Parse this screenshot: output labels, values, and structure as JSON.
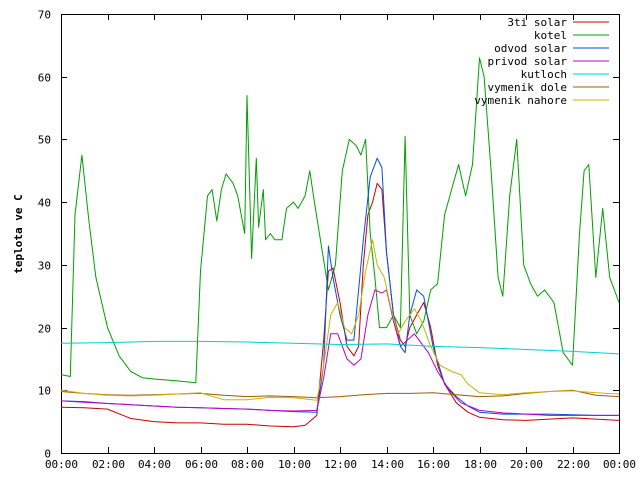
{
  "chart_data": {
    "type": "line",
    "title": "",
    "xlabel": "",
    "ylabel": "teplota ve C",
    "xlim": [
      0,
      24
    ],
    "ylim": [
      0,
      70
    ],
    "grid": false,
    "legend_position": "top-right",
    "x_ticks": [
      "00:00",
      "02:00",
      "04:00",
      "06:00",
      "08:00",
      "10:00",
      "12:00",
      "14:00",
      "16:00",
      "18:00",
      "20:00",
      "22:00",
      "00:00"
    ],
    "y_ticks": [
      "0",
      "10",
      "20",
      "30",
      "40",
      "50",
      "60",
      "70"
    ],
    "y_tick_values": [
      0,
      10,
      20,
      30,
      40,
      50,
      60,
      70
    ],
    "series": [
      {
        "name": "3ti solar",
        "color": "#cc0000",
        "points": [
          [
            0,
            7.3
          ],
          [
            1,
            7.2
          ],
          [
            2,
            7
          ],
          [
            3,
            5.5
          ],
          [
            4,
            5
          ],
          [
            5,
            4.8
          ],
          [
            6,
            4.8
          ],
          [
            7,
            4.6
          ],
          [
            8,
            4.6
          ],
          [
            9,
            4.3
          ],
          [
            10,
            4.2
          ],
          [
            10.5,
            4.4
          ],
          [
            11,
            6
          ],
          [
            11.3,
            18
          ],
          [
            11.5,
            29
          ],
          [
            11.7,
            29.5
          ],
          [
            12,
            24
          ],
          [
            12.3,
            17
          ],
          [
            12.6,
            15.5
          ],
          [
            12.8,
            17
          ],
          [
            13,
            30
          ],
          [
            13.2,
            38
          ],
          [
            13.4,
            40
          ],
          [
            13.6,
            43
          ],
          [
            13.8,
            42
          ],
          [
            14,
            32
          ],
          [
            14.3,
            22
          ],
          [
            14.6,
            18
          ],
          [
            14.8,
            17
          ],
          [
            15,
            20
          ],
          [
            15.3,
            22
          ],
          [
            15.6,
            24
          ],
          [
            15.9,
            20
          ],
          [
            16.2,
            14
          ],
          [
            16.5,
            11
          ],
          [
            17,
            8
          ],
          [
            17.5,
            6.5
          ],
          [
            18,
            5.7
          ],
          [
            19,
            5.3
          ],
          [
            20,
            5.2
          ],
          [
            21,
            5.4
          ],
          [
            22,
            5.6
          ],
          [
            23,
            5.4
          ],
          [
            24,
            5.2
          ]
        ]
      },
      {
        "name": "kotel",
        "color": "#00a000",
        "points": [
          [
            0,
            12.5
          ],
          [
            0.4,
            12.2
          ],
          [
            0.6,
            38
          ],
          [
            0.9,
            47.5
          ],
          [
            1.2,
            37
          ],
          [
            1.5,
            28
          ],
          [
            2,
            20
          ],
          [
            2.5,
            15.5
          ],
          [
            3,
            13
          ],
          [
            3.5,
            12
          ],
          [
            4,
            11.8
          ],
          [
            5,
            11.5
          ],
          [
            5.8,
            11.2
          ],
          [
            6,
            29
          ],
          [
            6.3,
            41
          ],
          [
            6.5,
            42
          ],
          [
            6.7,
            37
          ],
          [
            6.9,
            42
          ],
          [
            7.1,
            44.5
          ],
          [
            7.4,
            43
          ],
          [
            7.6,
            41
          ],
          [
            7.9,
            35
          ],
          [
            8,
            57
          ],
          [
            8.2,
            31
          ],
          [
            8.4,
            47
          ],
          [
            8.5,
            36
          ],
          [
            8.7,
            42
          ],
          [
            8.8,
            34
          ],
          [
            9,
            35
          ],
          [
            9.2,
            34
          ],
          [
            9.5,
            34
          ],
          [
            9.7,
            39
          ],
          [
            10,
            40
          ],
          [
            10.2,
            39
          ],
          [
            10.5,
            41
          ],
          [
            10.7,
            45
          ],
          [
            10.9,
            40
          ],
          [
            11.2,
            33
          ],
          [
            11.5,
            26
          ],
          [
            11.8,
            30
          ],
          [
            12.1,
            45
          ],
          [
            12.4,
            50
          ],
          [
            12.7,
            49
          ],
          [
            12.9,
            47.5
          ],
          [
            13.1,
            50
          ],
          [
            13.3,
            35
          ],
          [
            13.5,
            28
          ],
          [
            13.7,
            20
          ],
          [
            14,
            20
          ],
          [
            14.3,
            22
          ],
          [
            14.6,
            20
          ],
          [
            14.8,
            50.5
          ],
          [
            15,
            22
          ],
          [
            15.3,
            19
          ],
          [
            15.6,
            21
          ],
          [
            15.9,
            26
          ],
          [
            16.2,
            27
          ],
          [
            16.5,
            38
          ],
          [
            16.8,
            42
          ],
          [
            17.1,
            46
          ],
          [
            17.4,
            41
          ],
          [
            17.7,
            46
          ],
          [
            18,
            63
          ],
          [
            18.2,
            60
          ],
          [
            18.5,
            45
          ],
          [
            18.8,
            28
          ],
          [
            19,
            25
          ],
          [
            19.3,
            41
          ],
          [
            19.6,
            50
          ],
          [
            19.9,
            30
          ],
          [
            20.2,
            27
          ],
          [
            20.5,
            25
          ],
          [
            20.8,
            26
          ],
          [
            21.2,
            24
          ],
          [
            21.6,
            16
          ],
          [
            22,
            14
          ],
          [
            22.3,
            35
          ],
          [
            22.5,
            45
          ],
          [
            22.7,
            46
          ],
          [
            23,
            28
          ],
          [
            23.3,
            39
          ],
          [
            23.6,
            28
          ],
          [
            24,
            24
          ]
        ]
      },
      {
        "name": "odvod solar",
        "color": "#0050e0",
        "points": [
          [
            0,
            8.3
          ],
          [
            1,
            8.2
          ],
          [
            2,
            7.9
          ],
          [
            3,
            7.7
          ],
          [
            4,
            7.5
          ],
          [
            5,
            7.3
          ],
          [
            6,
            7.2
          ],
          [
            7,
            7.1
          ],
          [
            8,
            7
          ],
          [
            9,
            6.8
          ],
          [
            10,
            6.6
          ],
          [
            11,
            6.5
          ],
          [
            11.3,
            14
          ],
          [
            11.5,
            33
          ],
          [
            11.7,
            28
          ],
          [
            12,
            22
          ],
          [
            12.3,
            18
          ],
          [
            12.6,
            18
          ],
          [
            13,
            34
          ],
          [
            13.3,
            44
          ],
          [
            13.6,
            47
          ],
          [
            13.8,
            45.5
          ],
          [
            14,
            32
          ],
          [
            14.3,
            22
          ],
          [
            14.6,
            17
          ],
          [
            14.8,
            16
          ],
          [
            15,
            22
          ],
          [
            15.3,
            26
          ],
          [
            15.6,
            25
          ],
          [
            16,
            17
          ],
          [
            16.5,
            11
          ],
          [
            17,
            9
          ],
          [
            17.5,
            7.5
          ],
          [
            18,
            6.5
          ],
          [
            19,
            6.2
          ],
          [
            20,
            6.2
          ],
          [
            21,
            6.2
          ],
          [
            22,
            6.1
          ],
          [
            23,
            6
          ],
          [
            24,
            6
          ]
        ]
      },
      {
        "name": "privod solar",
        "color": "#c000c0",
        "points": [
          [
            0,
            8.3
          ],
          [
            1,
            8.1
          ],
          [
            2,
            7.9
          ],
          [
            3,
            7.7
          ],
          [
            4,
            7.5
          ],
          [
            5,
            7.3
          ],
          [
            6,
            7.2
          ],
          [
            7,
            7.1
          ],
          [
            8,
            7
          ],
          [
            9,
            6.8
          ],
          [
            10,
            6.7
          ],
          [
            11,
            6.8
          ],
          [
            11.3,
            12
          ],
          [
            11.6,
            19
          ],
          [
            11.9,
            19
          ],
          [
            12.3,
            15
          ],
          [
            12.6,
            14
          ],
          [
            12.9,
            15
          ],
          [
            13.2,
            22
          ],
          [
            13.5,
            26
          ],
          [
            13.8,
            25.5
          ],
          [
            14,
            26
          ],
          [
            14.3,
            21
          ],
          [
            14.6,
            17
          ],
          [
            14.9,
            18
          ],
          [
            15.2,
            19
          ],
          [
            15.5,
            17.5
          ],
          [
            15.8,
            16
          ],
          [
            16.2,
            13
          ],
          [
            16.7,
            10
          ],
          [
            17.2,
            8
          ],
          [
            18,
            6.8
          ],
          [
            19,
            6.4
          ],
          [
            20,
            6.2
          ],
          [
            21,
            6
          ],
          [
            22,
            6
          ],
          [
            23,
            6
          ],
          [
            24,
            6
          ]
        ]
      },
      {
        "name": "kutloch",
        "color": "#00d0d0",
        "points": [
          [
            0,
            17.5
          ],
          [
            2,
            17.6
          ],
          [
            4,
            17.8
          ],
          [
            6,
            17.8
          ],
          [
            8,
            17.7
          ],
          [
            10,
            17.5
          ],
          [
            12,
            17.3
          ],
          [
            14,
            17.4
          ],
          [
            16,
            17
          ],
          [
            18,
            16.8
          ],
          [
            20,
            16.5
          ],
          [
            22,
            16.2
          ],
          [
            24,
            15.8
          ]
        ]
      },
      {
        "name": "vymenik dole",
        "color": "#a05a00",
        "points": [
          [
            0,
            9.8
          ],
          [
            1,
            9.5
          ],
          [
            2,
            9.3
          ],
          [
            3,
            9.2
          ],
          [
            4,
            9.3
          ],
          [
            5,
            9.4
          ],
          [
            6,
            9.5
          ],
          [
            7,
            9.2
          ],
          [
            8,
            9.0
          ],
          [
            9,
            9.1
          ],
          [
            10,
            9.0
          ],
          [
            11,
            8.8
          ],
          [
            12,
            9.0
          ],
          [
            13,
            9.3
          ],
          [
            14,
            9.5
          ],
          [
            15,
            9.5
          ],
          [
            16,
            9.6
          ],
          [
            17,
            9.3
          ],
          [
            18,
            9.0
          ],
          [
            19,
            9.1
          ],
          [
            20,
            9.5
          ],
          [
            21,
            9.8
          ],
          [
            22,
            10
          ],
          [
            23,
            9.2
          ],
          [
            24,
            9.0
          ]
        ]
      },
      {
        "name": "vymenik nahore",
        "color": "#c8b400",
        "points": [
          [
            0,
            10
          ],
          [
            1,
            9.5
          ],
          [
            2,
            9.2
          ],
          [
            3,
            9.1
          ],
          [
            4,
            9.2
          ],
          [
            5,
            9.4
          ],
          [
            6,
            9.6
          ],
          [
            7,
            8.5
          ],
          [
            8,
            8.5
          ],
          [
            9,
            8.9
          ],
          [
            10,
            8.8
          ],
          [
            11,
            8.4
          ],
          [
            11.3,
            14
          ],
          [
            11.6,
            22
          ],
          [
            11.9,
            24
          ],
          [
            12.2,
            20
          ],
          [
            12.5,
            19
          ],
          [
            12.8,
            22
          ],
          [
            13.1,
            29
          ],
          [
            13.4,
            34
          ],
          [
            13.6,
            30
          ],
          [
            13.9,
            28
          ],
          [
            14.2,
            23
          ],
          [
            14.5,
            19
          ],
          [
            14.8,
            21
          ],
          [
            15.2,
            23
          ],
          [
            15.5,
            21
          ],
          [
            15.9,
            17
          ],
          [
            16.3,
            14
          ],
          [
            16.8,
            13
          ],
          [
            17.2,
            12.5
          ],
          [
            17.5,
            11
          ],
          [
            18,
            9.6
          ],
          [
            19,
            9.3
          ],
          [
            20,
            9.6
          ],
          [
            21,
            9.8
          ],
          [
            22,
            9.9
          ],
          [
            23,
            9.6
          ],
          [
            24,
            9.4
          ]
        ]
      }
    ]
  }
}
